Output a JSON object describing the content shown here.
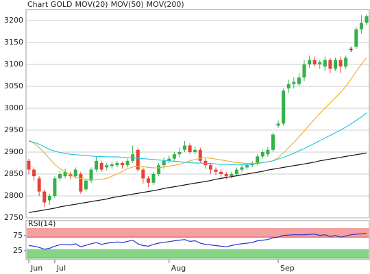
{
  "chart_data": [
    {
      "type": "candlestick",
      "categories": [
        "Jun",
        null,
        null,
        null,
        null,
        "Jul",
        null,
        null,
        null,
        null,
        null,
        null,
        null,
        null,
        null,
        null,
        null,
        null,
        null,
        null,
        null,
        null,
        null,
        null,
        null,
        null,
        null,
        "Aug",
        null,
        null,
        null,
        null,
        null,
        null,
        null,
        null,
        null,
        null,
        null,
        null,
        null,
        null,
        null,
        null,
        null,
        null,
        null,
        null,
        "Sep",
        null,
        null,
        null,
        null,
        null,
        null,
        null,
        null,
        null,
        null,
        null,
        null,
        null,
        null,
        null,
        null,
        null
      ],
      "ylim": [
        2750,
        3225
      ],
      "yticks": [
        2750,
        2800,
        2850,
        2900,
        2950,
        3000,
        3050,
        3100,
        3150,
        3200
      ],
      "grid": true,
      "series": [
        {
          "name": "Chart GOLD",
          "type": "candlestick",
          "color": "#e8413a",
          "up_color": "#33b24a",
          "down_color": "#e8413a",
          "open": [
            2880,
            2860,
            2840,
            2810,
            2790,
            2800,
            2840,
            2845,
            2850,
            2845,
            2850,
            2815,
            2835,
            2860,
            2875,
            2865,
            2868,
            2870,
            2875,
            2870,
            2880,
            2905,
            2860,
            2840,
            2830,
            2850,
            2870,
            2880,
            2885,
            2895,
            2905,
            2915,
            2900,
            2905,
            2880,
            2870,
            2860,
            2855,
            2850,
            2845,
            2850,
            2860,
            2865,
            2870,
            2875,
            2890,
            2895,
            2905,
            2960,
            2965,
            3045,
            3055,
            3055,
            3070,
            3100,
            3110,
            3100,
            3095,
            3110,
            3090,
            3110,
            3095,
            3135,
            3140,
            3180,
            3195
          ],
          "high": [
            2885,
            2865,
            2845,
            2815,
            2805,
            2845,
            2858,
            2862,
            2855,
            2865,
            2855,
            2840,
            2865,
            2890,
            2880,
            2875,
            2878,
            2880,
            2878,
            2885,
            2915,
            2910,
            2865,
            2845,
            2855,
            2875,
            2888,
            2892,
            2900,
            2910,
            2925,
            2920,
            2912,
            2910,
            2885,
            2875,
            2865,
            2862,
            2855,
            2855,
            2865,
            2870,
            2875,
            2880,
            2895,
            2905,
            2912,
            2945,
            2972,
            3045,
            3065,
            3070,
            3080,
            3110,
            3120,
            3118,
            3110,
            3118,
            3115,
            3115,
            3118,
            3120,
            3140,
            3185,
            3212,
            3215
          ],
          "low": [
            2850,
            2835,
            2800,
            2775,
            2780,
            2795,
            2835,
            2840,
            2838,
            2840,
            2805,
            2810,
            2830,
            2855,
            2855,
            2858,
            2862,
            2865,
            2862,
            2865,
            2875,
            2855,
            2828,
            2820,
            2825,
            2845,
            2862,
            2875,
            2880,
            2888,
            2900,
            2895,
            2895,
            2875,
            2862,
            2850,
            2848,
            2842,
            2838,
            2840,
            2845,
            2855,
            2860,
            2865,
            2870,
            2885,
            2890,
            2900,
            2955,
            2960,
            3035,
            3045,
            3050,
            3062,
            3092,
            3095,
            3090,
            3085,
            3080,
            3085,
            3080,
            3090,
            3128,
            3135,
            3170,
            3190
          ],
          "close": [
            2860,
            2845,
            2810,
            2785,
            2800,
            2840,
            2850,
            2855,
            2845,
            2860,
            2810,
            2835,
            2860,
            2880,
            2860,
            2870,
            2872,
            2875,
            2870,
            2880,
            2895,
            2860,
            2840,
            2830,
            2850,
            2870,
            2880,
            2885,
            2895,
            2900,
            2915,
            2900,
            2905,
            2880,
            2870,
            2860,
            2855,
            2850,
            2845,
            2850,
            2860,
            2865,
            2870,
            2875,
            2890,
            2900,
            2905,
            2940,
            2965,
            3040,
            3055,
            3060,
            3070,
            3100,
            3110,
            3100,
            3105,
            3110,
            3090,
            3110,
            3095,
            3115,
            3135,
            3180,
            3195,
            3210
          ]
        },
        {
          "name": "MOV(20)",
          "type": "line",
          "color": "#f0b030",
          "values": [
            2927,
            2920,
            2910,
            2898,
            2885,
            2872,
            2862,
            2855,
            2848,
            2843,
            2840,
            2838,
            2837,
            2837,
            2838,
            2840,
            2845,
            2850,
            2856,
            2862,
            2866,
            2868,
            2867,
            2865,
            2864,
            2864,
            2866,
            2868,
            2870,
            2872,
            2876,
            2880,
            2883,
            2886,
            2887,
            2886,
            2884,
            2882,
            2880,
            2878,
            2876,
            2875,
            2874,
            2874,
            2875,
            2876,
            2878,
            2880,
            2888,
            2898,
            2910,
            2922,
            2935,
            2948,
            2962,
            2975,
            2988,
            3000,
            3012,
            3024,
            3036,
            3050,
            3066,
            3084,
            3100,
            3115
          ]
        },
        {
          "name": "MOV(50)",
          "type": "line",
          "color": "#22c8e0",
          "values": [
            2925,
            2922,
            2918,
            2912,
            2906,
            2902,
            2899,
            2897,
            2895,
            2894,
            2893,
            2892,
            2891,
            2890,
            2890,
            2889,
            2889,
            2889,
            2888,
            2888,
            2887,
            2886,
            2885,
            2884,
            2883,
            2882,
            2881,
            2880,
            2879,
            2878,
            2877,
            2876,
            2875,
            2875,
            2874,
            2874,
            2873,
            2872,
            2872,
            2871,
            2871,
            2871,
            2872,
            2873,
            2874,
            2876,
            2878,
            2880,
            2884,
            2888,
            2892,
            2897,
            2903,
            2908,
            2914,
            2920,
            2926,
            2932,
            2938,
            2944,
            2950,
            2957,
            2964,
            2972,
            2980,
            2990
          ]
        },
        {
          "name": "MOV(200)",
          "type": "line",
          "color": "#111111",
          "values": [
            2762,
            2764,
            2766,
            2768,
            2770,
            2772,
            2775,
            2777,
            2779,
            2781,
            2783,
            2785,
            2787,
            2789,
            2791,
            2793,
            2796,
            2798,
            2800,
            2802,
            2804,
            2806,
            2808,
            2810,
            2812,
            2814,
            2817,
            2819,
            2821,
            2823,
            2825,
            2827,
            2829,
            2831,
            2833,
            2835,
            2838,
            2840,
            2842,
            2844,
            2846,
            2848,
            2850,
            2852,
            2854,
            2856,
            2859,
            2861,
            2863,
            2865,
            2867,
            2869,
            2871,
            2873,
            2875,
            2877,
            2880,
            2882,
            2884,
            2886,
            2888,
            2890,
            2892,
            2894,
            2896,
            2898
          ]
        }
      ]
    },
    {
      "type": "line",
      "ylim": [
        0,
        100
      ],
      "yticks": [
        25,
        75
      ],
      "bands": [
        {
          "from": 70,
          "to": 100,
          "color": "#f4a0a0",
          "edge": "#e03030"
        },
        {
          "from": 0,
          "to": 30,
          "color": "#86d486",
          "edge": "#3aa03a"
        }
      ],
      "series": [
        {
          "name": "RSI(14)",
          "color": "#2233cc",
          "values": [
            42,
            40,
            36,
            30,
            33,
            40,
            45,
            46,
            44,
            48,
            38,
            43,
            48,
            52,
            46,
            50,
            52,
            54,
            52,
            56,
            60,
            48,
            42,
            40,
            46,
            50,
            53,
            55,
            58,
            60,
            62,
            56,
            58,
            50,
            46,
            44,
            42,
            40,
            38,
            42,
            46,
            48,
            50,
            52,
            58,
            60,
            62,
            68,
            70,
            76,
            77,
            78,
            78,
            78,
            79,
            80,
            76,
            78,
            72,
            76,
            70,
            74,
            78,
            80,
            81,
            82
          ]
        }
      ]
    }
  ]
}
